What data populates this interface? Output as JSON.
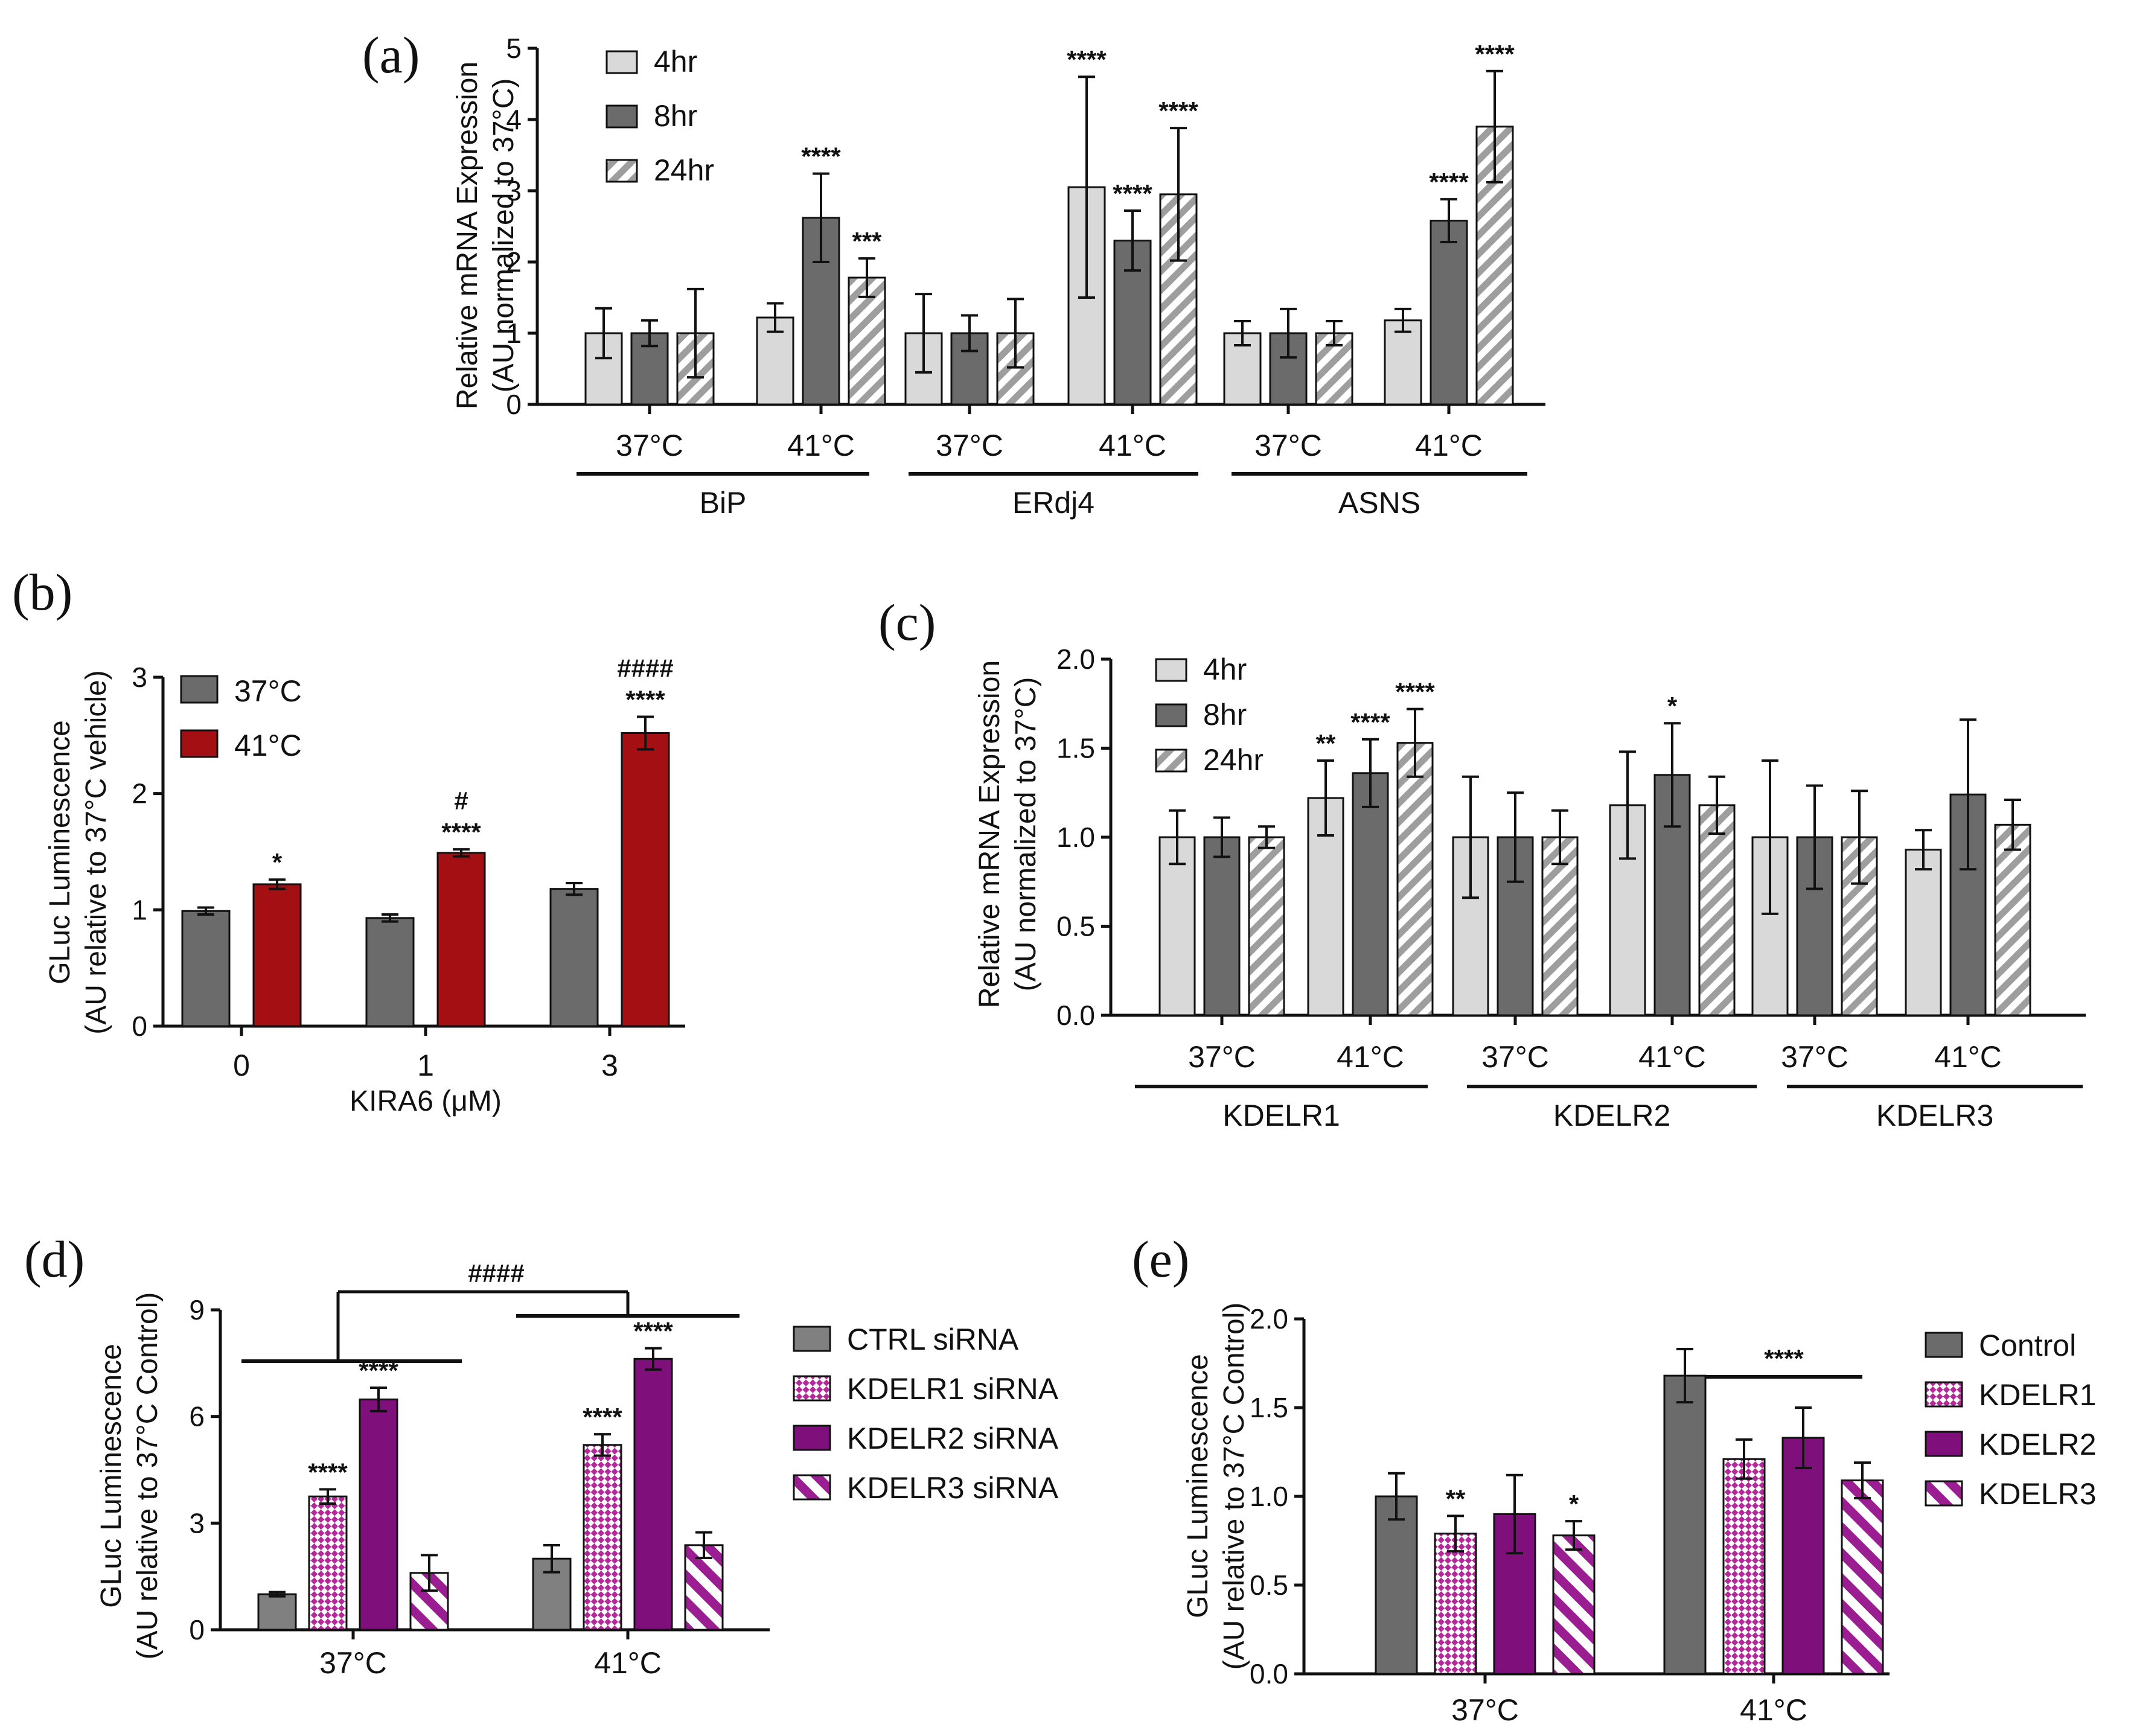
{
  "chart_data": [
    {
      "id": "a",
      "panel_label": "(a)",
      "type": "bar",
      "ylabel": [
        "Relative mRNA Expression",
        "(AU normalized to 37°C)"
      ],
      "ylim": [
        0,
        5
      ],
      "yticks": [
        "0",
        "1",
        "2",
        "3",
        "4",
        "5"
      ],
      "yticks_values": [
        0,
        1,
        2,
        3,
        4,
        5
      ],
      "legend": [
        {
          "name": "4hr",
          "color": "#d9d9d9",
          "pattern": "solid"
        },
        {
          "name": "8hr",
          "color": "#6b6b6b",
          "pattern": "solid"
        },
        {
          "name": "24hr",
          "color": "#b0b0b0",
          "pattern": "hatch"
        }
      ],
      "groups": [
        {
          "label": "BiP",
          "categories": [
            {
              "label": "37°C",
              "values": [
                1.0,
                1.0,
                1.0
              ],
              "errors": [
                0.35,
                0.18,
                0.62
              ],
              "sig": [
                "",
                "",
                ""
              ]
            },
            {
              "label": "41°C",
              "values": [
                1.22,
                2.62,
                1.78
              ],
              "errors": [
                0.2,
                0.62,
                0.27
              ],
              "sig": [
                "",
                "****",
                "***"
              ]
            }
          ]
        },
        {
          "label": "ERdj4",
          "categories": [
            {
              "label": "37°C",
              "values": [
                1.0,
                1.0,
                1.0
              ],
              "errors": [
                0.55,
                0.25,
                0.48
              ],
              "sig": [
                "",
                "",
                ""
              ]
            },
            {
              "label": "41°C",
              "values": [
                3.05,
                2.3,
                2.95
              ],
              "errors": [
                1.55,
                0.42,
                0.93
              ],
              "sig": [
                "****",
                "****",
                "****"
              ]
            }
          ]
        },
        {
          "label": "ASNS",
          "categories": [
            {
              "label": "37°C",
              "values": [
                1.0,
                1.0,
                1.0
              ],
              "errors": [
                0.17,
                0.34,
                0.17
              ],
              "sig": [
                "",
                "",
                ""
              ]
            },
            {
              "label": "41°C",
              "values": [
                1.18,
                2.58,
                3.9
              ],
              "errors": [
                0.16,
                0.3,
                0.78
              ],
              "sig": [
                "",
                "****",
                "****"
              ]
            }
          ]
        }
      ]
    },
    {
      "id": "b",
      "panel_label": "(b)",
      "type": "bar",
      "ylabel": [
        "GLuc Luminescence",
        "(AU relative to 37°C vehicle)"
      ],
      "xlabel": "KIRA6 (μM)",
      "ylim": [
        0,
        3
      ],
      "yticks": [
        "0",
        "1",
        "2",
        "3"
      ],
      "yticks_values": [
        0,
        1,
        2,
        3
      ],
      "legend": [
        {
          "name": "37°C",
          "color": "#6b6b6b",
          "pattern": "solid"
        },
        {
          "name": "41°C",
          "color": "#a30f12",
          "pattern": "solid"
        }
      ],
      "categories": [
        {
          "label": "0",
          "values": [
            0.99,
            1.22
          ],
          "errors": [
            0.03,
            0.04
          ],
          "sig": [
            "",
            "*"
          ],
          "sig2": [
            "",
            ""
          ]
        },
        {
          "label": "1",
          "values": [
            0.93,
            1.49
          ],
          "errors": [
            0.03,
            0.03
          ],
          "sig": [
            "",
            "****"
          ],
          "sig2": [
            "",
            "#"
          ]
        },
        {
          "label": "3",
          "values": [
            1.18,
            2.52
          ],
          "errors": [
            0.05,
            0.14
          ],
          "sig": [
            "",
            "****"
          ],
          "sig2": [
            "",
            "####"
          ]
        }
      ]
    },
    {
      "id": "c",
      "panel_label": "(c)",
      "type": "bar",
      "ylabel": [
        "Relative mRNA Expression",
        "(AU normalized to 37°C)"
      ],
      "ylim": [
        0,
        2
      ],
      "yticks": [
        "0.0",
        "0.5",
        "1.0",
        "1.5",
        "2.0"
      ],
      "yticks_values": [
        0,
        0.5,
        1.0,
        1.5,
        2.0
      ],
      "legend": [
        {
          "name": "4hr",
          "color": "#d9d9d9",
          "pattern": "solid"
        },
        {
          "name": "8hr",
          "color": "#6b6b6b",
          "pattern": "solid"
        },
        {
          "name": "24hr",
          "color": "#b0b0b0",
          "pattern": "hatch"
        }
      ],
      "groups": [
        {
          "label": "KDELR1",
          "categories": [
            {
              "label": "37°C",
              "values": [
                1.0,
                1.0,
                1.0
              ],
              "errors": [
                0.15,
                0.11,
                0.06
              ],
              "sig": [
                "",
                "",
                ""
              ]
            },
            {
              "label": "41°C",
              "values": [
                1.22,
                1.36,
                1.53
              ],
              "errors": [
                0.21,
                0.19,
                0.19
              ],
              "sig": [
                "**",
                "****",
                "****"
              ]
            }
          ]
        },
        {
          "label": "KDELR2",
          "categories": [
            {
              "label": "37°C",
              "values": [
                1.0,
                1.0,
                1.0
              ],
              "errors": [
                0.34,
                0.25,
                0.15
              ],
              "sig": [
                "",
                "",
                ""
              ]
            },
            {
              "label": "41°C",
              "values": [
                1.18,
                1.35,
                1.18
              ],
              "errors": [
                0.3,
                0.29,
                0.16
              ],
              "sig": [
                "",
                "*",
                ""
              ]
            }
          ]
        },
        {
          "label": "KDELR3",
          "categories": [
            {
              "label": "37°C",
              "values": [
                1.0,
                1.0,
                1.0
              ],
              "errors": [
                0.43,
                0.29,
                0.26
              ],
              "sig": [
                "",
                "",
                ""
              ]
            },
            {
              "label": "41°C",
              "values": [
                0.93,
                1.24,
                1.07
              ],
              "errors": [
                0.11,
                0.42,
                0.14
              ],
              "sig": [
                "",
                "",
                ""
              ]
            }
          ]
        }
      ]
    },
    {
      "id": "d",
      "panel_label": "(d)",
      "type": "bar",
      "ylabel": [
        "GLuc Luminescence",
        "(AU relative to 37°C Control)"
      ],
      "ylim": [
        0,
        9
      ],
      "yticks": [
        "0",
        "3",
        "6",
        "9"
      ],
      "yticks_values": [
        0,
        3,
        6,
        9
      ],
      "legend": [
        {
          "name": "CTRL siRNA",
          "color": "#808080",
          "pattern": "solid"
        },
        {
          "name": "KDELR1 siRNA",
          "color": "#b5289a",
          "pattern": "check"
        },
        {
          "name": "KDELR2 siRNA",
          "color": "#7f0f7a",
          "pattern": "solid"
        },
        {
          "name": "KDELR3 siRNA",
          "color": "#9a1d92",
          "pattern": "stripe"
        }
      ],
      "bracket_label": "####",
      "categories": [
        {
          "label": "37°C",
          "values": [
            1.0,
            3.75,
            6.48,
            1.6
          ],
          "errors": [
            0.06,
            0.2,
            0.33,
            0.5
          ],
          "sig": [
            "",
            "****",
            "****",
            ""
          ]
        },
        {
          "label": "41°C",
          "values": [
            2.0,
            5.2,
            7.62,
            2.38
          ],
          "errors": [
            0.38,
            0.3,
            0.3,
            0.36
          ],
          "sig": [
            "",
            "****",
            "****",
            ""
          ]
        }
      ]
    },
    {
      "id": "e",
      "panel_label": "(e)",
      "type": "bar",
      "ylabel": [
        "GLuc Luminescence",
        "(AU relative to 37°C Control)"
      ],
      "ylim": [
        0,
        2
      ],
      "yticks": [
        "0.0",
        "0.5",
        "1.0",
        "1.5",
        "2.0"
      ],
      "yticks_values": [
        0,
        0.5,
        1.0,
        1.5,
        2.0
      ],
      "legend": [
        {
          "name": "Control",
          "color": "#6b6b6b",
          "pattern": "solid"
        },
        {
          "name": "KDELR1",
          "color": "#b5289a",
          "pattern": "check"
        },
        {
          "name": "KDELR2",
          "color": "#7f0f7a",
          "pattern": "solid"
        },
        {
          "name": "KDELR3",
          "color": "#9a1d92",
          "pattern": "stripe"
        }
      ],
      "bracket_label": "****",
      "categories": [
        {
          "label": "37°C",
          "values": [
            1.0,
            0.79,
            0.9,
            0.78
          ],
          "errors": [
            0.13,
            0.1,
            0.22,
            0.08
          ],
          "sig": [
            "",
            "**",
            "",
            "*"
          ]
        },
        {
          "label": "41°C",
          "values": [
            1.68,
            1.21,
            1.33,
            1.09
          ],
          "errors": [
            0.15,
            0.11,
            0.17,
            0.1
          ],
          "sig": [
            "",
            "",
            "",
            ""
          ]
        }
      ]
    }
  ]
}
